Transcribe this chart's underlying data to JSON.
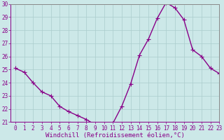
{
  "x": [
    0,
    1,
    2,
    3,
    4,
    5,
    6,
    7,
    8,
    9,
    10,
    11,
    12,
    13,
    14,
    15,
    16,
    17,
    18,
    19,
    20,
    21,
    22,
    23
  ],
  "y": [
    25.1,
    24.8,
    24.0,
    23.3,
    23.0,
    22.2,
    21.8,
    21.5,
    21.2,
    20.8,
    20.8,
    20.9,
    22.2,
    23.9,
    26.1,
    27.3,
    28.9,
    30.1,
    29.7,
    28.8,
    26.5,
    26.0,
    25.1,
    24.7
  ],
  "line_color": "#880088",
  "marker": "+",
  "markersize": 4,
  "linewidth": 1.0,
  "bg_color": "#cce8e8",
  "grid_color": "#aacccc",
  "xlabel": "Windchill (Refroidissement éolien,°C)",
  "ylim": [
    21,
    30
  ],
  "xlim": [
    -0.5,
    23
  ],
  "yticks": [
    21,
    22,
    23,
    24,
    25,
    26,
    27,
    28,
    29,
    30
  ],
  "xticks": [
    0,
    1,
    2,
    3,
    4,
    5,
    6,
    7,
    8,
    9,
    10,
    11,
    12,
    13,
    14,
    15,
    16,
    17,
    18,
    19,
    20,
    21,
    22,
    23
  ],
  "tick_color": "#880088",
  "tick_fontsize": 5.5,
  "xlabel_fontsize": 6.5,
  "border_color": "#880088",
  "spine_color": "#888888"
}
